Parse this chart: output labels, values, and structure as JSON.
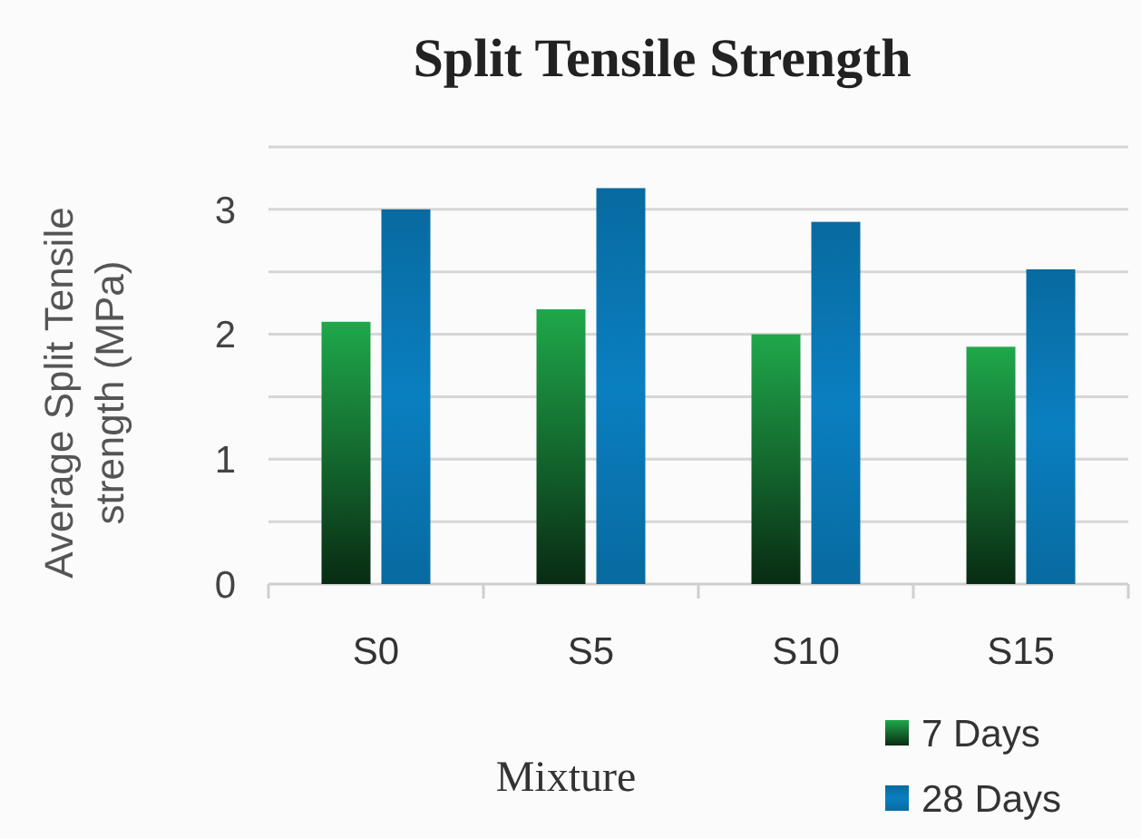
{
  "chart_data": {
    "type": "bar",
    "title": "Split Tensile Strength",
    "xlabel": "Mixture",
    "ylabel": "Average Split Tensile strength (MPa)",
    "categories": [
      "S0",
      "S5",
      "S10",
      "S15"
    ],
    "series": [
      {
        "name": "7 Days",
        "color": "#1fa84a",
        "values": [
          2.1,
          2.2,
          2.0,
          1.9
        ]
      },
      {
        "name": "28 Days",
        "color": "#0a7fc0",
        "values": [
          3.0,
          3.17,
          2.9,
          2.52
        ]
      }
    ],
    "ylim": [
      0,
      3.5
    ],
    "yticks": [
      0,
      {
        "value": 0.5,
        "label": null
      },
      1,
      {
        "value": 1.5,
        "label": null
      },
      2,
      {
        "value": 2.5,
        "label": null
      },
      3,
      {
        "value": 3.5,
        "label": null
      }
    ],
    "grid": "y",
    "legend": "bottom right"
  }
}
